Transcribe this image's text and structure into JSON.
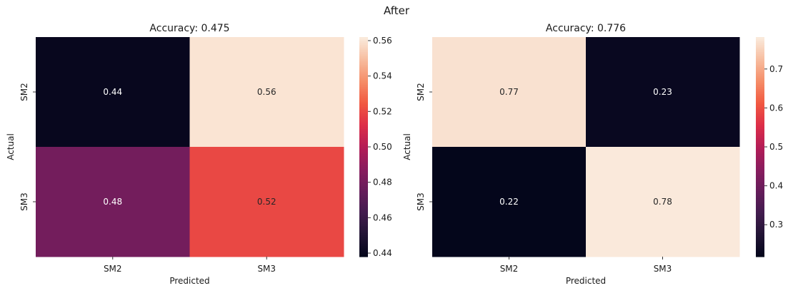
{
  "figure": {
    "title": "After"
  },
  "chart_data": [
    {
      "type": "heatmap",
      "title": "Accuracy: 0.475",
      "xlabel": "Predicted",
      "ylabel": "Actual",
      "x_categories": [
        "SM2",
        "SM3"
      ],
      "y_categories": [
        "SM2",
        "SM3"
      ],
      "values": [
        [
          0.44,
          0.56
        ],
        [
          0.48,
          0.52
        ]
      ],
      "annotations": [
        [
          "0.44",
          "0.56"
        ],
        [
          "0.48",
          "0.52"
        ]
      ],
      "colormap": "rocket",
      "colorbar": {
        "range": [
          0.438,
          0.562
        ],
        "ticks": [
          0.44,
          0.46,
          0.48,
          0.5,
          0.52,
          0.54,
          0.56
        ],
        "tick_labels": [
          "0.44",
          "0.46",
          "0.48",
          "0.50",
          "0.52",
          "0.54",
          "0.56"
        ]
      }
    },
    {
      "type": "heatmap",
      "title": "Accuracy: 0.776",
      "xlabel": "Predicted",
      "ylabel": "Actual",
      "x_categories": [
        "SM2",
        "SM3"
      ],
      "y_categories": [
        "SM2",
        "SM3"
      ],
      "values": [
        [
          0.77,
          0.23
        ],
        [
          0.22,
          0.78
        ]
      ],
      "annotations": [
        [
          "0.77",
          "0.23"
        ],
        [
          "0.22",
          "0.78"
        ]
      ],
      "colormap": "rocket",
      "colorbar": {
        "range": [
          0.218,
          0.782
        ],
        "ticks": [
          0.3,
          0.4,
          0.5,
          0.6,
          0.7
        ],
        "tick_labels": [
          "0.3",
          "0.4",
          "0.5",
          "0.6",
          "0.7"
        ]
      }
    }
  ]
}
